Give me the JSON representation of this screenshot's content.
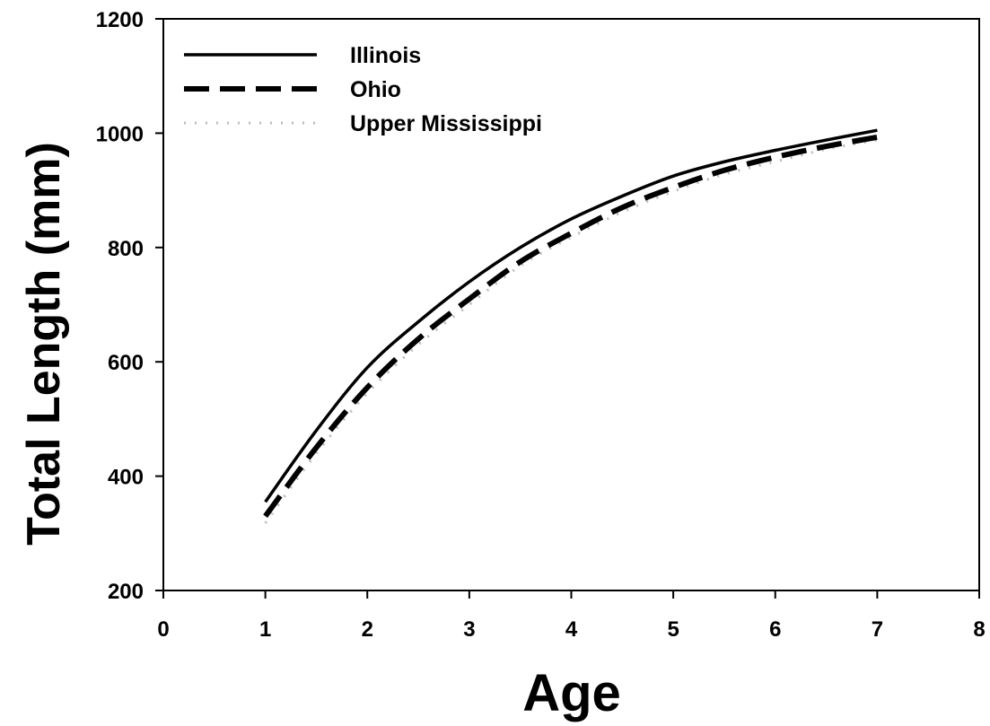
{
  "chart_data": {
    "type": "line",
    "title": "",
    "xlabel": "Age",
    "ylabel": "Total Length (mm)",
    "xlim": [
      0,
      8
    ],
    "ylim": [
      200,
      1200
    ],
    "xticks": [
      0,
      1,
      2,
      3,
      4,
      5,
      6,
      7,
      8
    ],
    "yticks": [
      200,
      400,
      600,
      800,
      1000,
      1200
    ],
    "grid": false,
    "legend_position": "top-left",
    "series": [
      {
        "name": "Illinois",
        "style": "solid",
        "color": "#000000",
        "x": [
          1,
          1.5,
          2,
          2.5,
          3,
          3.5,
          4,
          4.5,
          5,
          5.5,
          6,
          6.5,
          7
        ],
        "y": [
          355,
          480,
          590,
          670,
          740,
          800,
          850,
          890,
          925,
          950,
          970,
          988,
          1005
        ]
      },
      {
        "name": "Ohio",
        "style": "dashed",
        "color": "#000000",
        "x": [
          1,
          1.5,
          2,
          2.5,
          3,
          3.5,
          4,
          4.5,
          5,
          5.5,
          6,
          6.5,
          7
        ],
        "y": [
          330,
          450,
          555,
          640,
          710,
          775,
          825,
          870,
          905,
          935,
          958,
          977,
          993
        ]
      },
      {
        "name": "Upper Mississippi",
        "style": "dotted",
        "color": "#bbbbbb",
        "x": [
          1,
          1.5,
          2,
          2.5,
          3,
          3.5,
          4,
          4.5,
          5,
          5.5,
          6,
          6.5,
          7
        ],
        "y": [
          318,
          440,
          545,
          630,
          700,
          768,
          818,
          862,
          898,
          928,
          950,
          972,
          988
        ]
      }
    ]
  }
}
